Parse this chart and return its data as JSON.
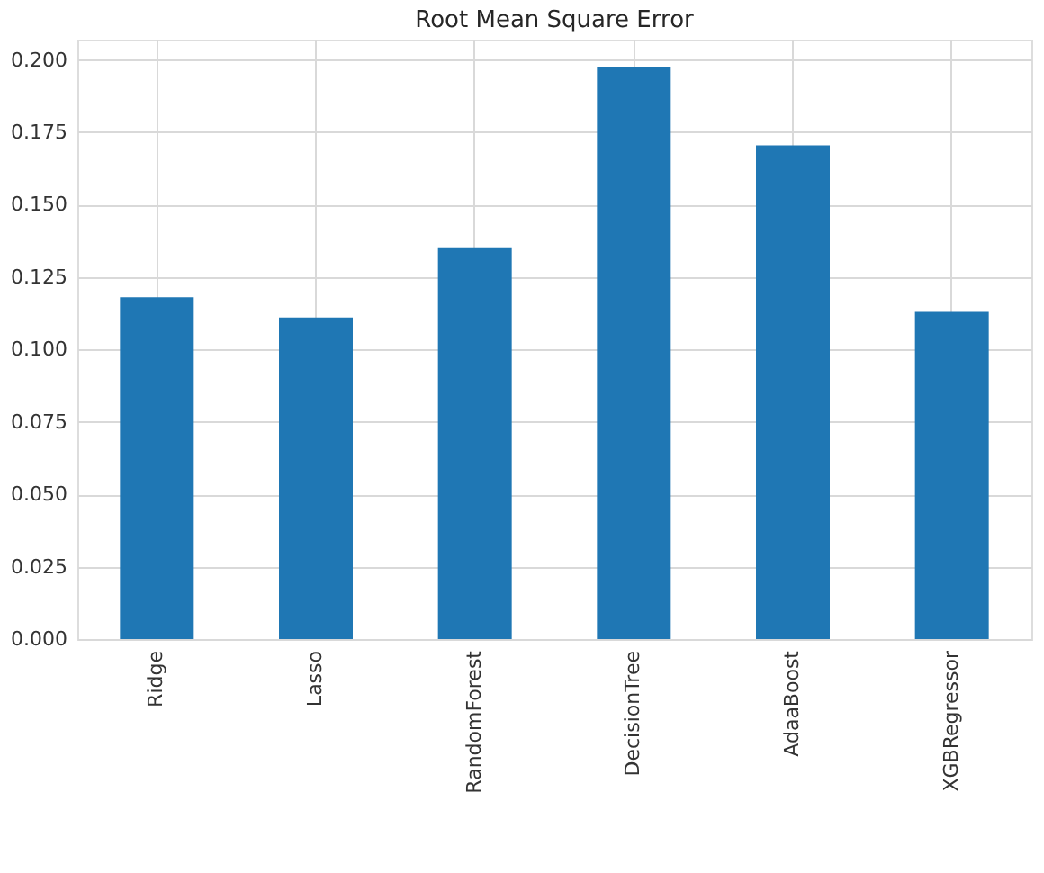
{
  "chart_data": {
    "type": "bar",
    "title": "Root Mean Square Error",
    "categories": [
      "Ridge",
      "Lasso",
      "RandomForest",
      "DecisionTree",
      "AdaaBoost",
      "XGBRegressor"
    ],
    "values": [
      0.118,
      0.111,
      0.135,
      0.1975,
      0.1705,
      0.113
    ],
    "color": "#1f77b4",
    "ylim": [
      0,
      0.207
    ],
    "yticks": [
      {
        "value": 0,
        "label": "0.000"
      },
      0.025,
      {
        "value": 0.05,
        "label": "0.050"
      },
      0.075,
      {
        "value": 0.1,
        "label": "0.100"
      },
      0.125,
      {
        "value": 0.15,
        "label": "0.150"
      },
      0.175,
      {
        "value": 0.2,
        "label": "0.200"
      }
    ],
    "grid": true
  }
}
